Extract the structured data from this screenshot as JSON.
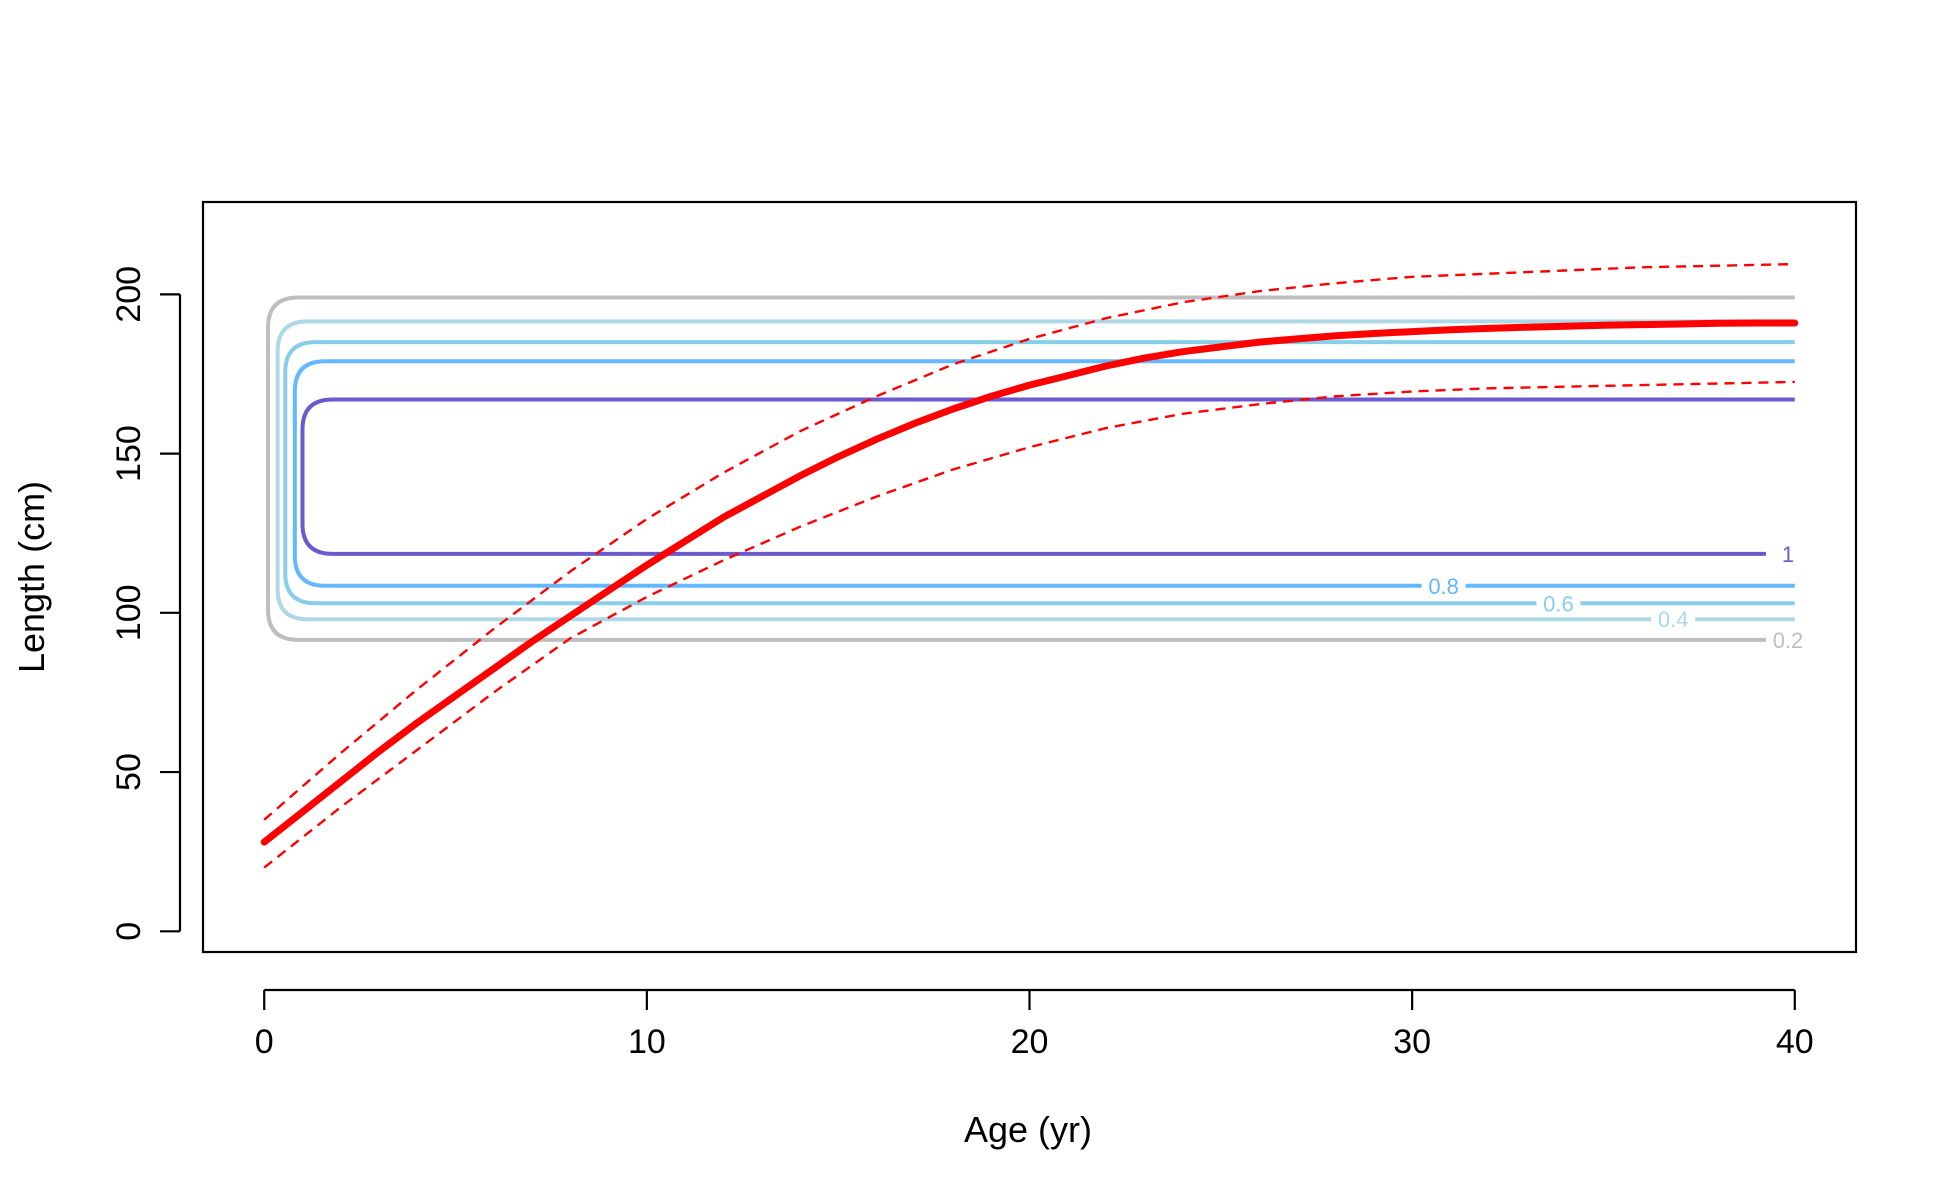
{
  "chart_data": {
    "type": "line",
    "xlabel": "Age (yr)",
    "ylabel": "Length (cm)",
    "xlim": [
      -1.6,
      41.6
    ],
    "ylim": [
      -6.5,
      229
    ],
    "xticks": [
      0,
      10,
      20,
      30,
      40
    ],
    "yticks": [
      0,
      50,
      100,
      150,
      200
    ],
    "tick_labels": {
      "x": [
        "0",
        "10",
        "20",
        "30",
        "40"
      ],
      "y": [
        "0",
        "50",
        "100",
        "150",
        "200"
      ]
    },
    "grid": false,
    "colors": {
      "growth": "#ff0000",
      "contour_1": "#6a5acd",
      "contour_0_8": "#63b8ff",
      "contour_0_6": "#87ceeb",
      "contour_0_4": "#add8e6",
      "contour_0_2": "#bebebe"
    },
    "series": [
      {
        "style": "solid-thick",
        "color": "#ff0000",
        "x": [
          0,
          1,
          2,
          3,
          4,
          5,
          6,
          7,
          8,
          9,
          10,
          11,
          12,
          13,
          14,
          15,
          16,
          17,
          18,
          19,
          20,
          21,
          22,
          23,
          24,
          25,
          26,
          27,
          28,
          29,
          30,
          31,
          32,
          33,
          34,
          35,
          36,
          37,
          38,
          39,
          40
        ],
        "y": [
          28,
          37.5,
          47,
          56.5,
          65.5,
          74,
          82.5,
          91,
          99,
          107,
          115,
          122.5,
          130,
          136.5,
          143,
          149,
          154.5,
          159.5,
          164,
          168,
          171.5,
          174.5,
          177.5,
          180,
          182,
          183.5,
          185,
          186,
          187,
          187.7,
          188.3,
          188.9,
          189.3,
          189.7,
          190,
          190.3,
          190.5,
          190.7,
          190.9,
          191,
          191
        ]
      },
      {
        "style": "dashed",
        "color": "#ff0000",
        "x": [
          0,
          2,
          4,
          6,
          8,
          10,
          12,
          14,
          16,
          18,
          20,
          22,
          24,
          26,
          28,
          30,
          32,
          34,
          36,
          38,
          40
        ],
        "y": [
          35,
          56,
          76,
          95,
          113,
          129.5,
          144,
          157,
          168,
          178,
          186,
          192.5,
          197.5,
          201,
          203.5,
          205.5,
          206.5,
          207.5,
          208.5,
          209,
          209.5
        ]
      },
      {
        "style": "dashed",
        "color": "#ff0000",
        "x": [
          0,
          2,
          4,
          6,
          8,
          10,
          12,
          14,
          16,
          18,
          20,
          22,
          24,
          26,
          28,
          30,
          32,
          34,
          36,
          38,
          40
        ],
        "y": [
          20,
          39,
          57,
          75,
          92,
          105,
          116.5,
          127,
          136.5,
          145,
          152,
          158,
          162.5,
          165.5,
          168,
          169.5,
          170.5,
          171,
          171.5,
          172,
          172.5
        ]
      }
    ],
    "contours": [
      {
        "level": "0.2",
        "color": "#bebebe",
        "ylow": 91.5,
        "yhigh": 199,
        "xleft": 0.1,
        "label_x": 39.3,
        "label_y": 91.5
      },
      {
        "level": "0.4",
        "color": "#add8e6",
        "ylow": 98,
        "yhigh": 191.5,
        "xleft": 0.35,
        "label_x": 36.3,
        "label_y": 98
      },
      {
        "level": "0.6",
        "color": "#87ceeb",
        "ylow": 103,
        "yhigh": 185,
        "xleft": 0.55,
        "label_x": 33.3,
        "label_y": 103
      },
      {
        "level": "0.8",
        "color": "#63b8ff",
        "ylow": 108.5,
        "yhigh": 179,
        "xleft": 0.8,
        "label_x": 30.3,
        "label_y": 108.5
      },
      {
        "level": "1",
        "color": "#6a5acd",
        "ylow": 118.5,
        "yhigh": 167,
        "xleft": 1.0,
        "label_x": 39.3,
        "label_y": 118.5
      }
    ]
  }
}
